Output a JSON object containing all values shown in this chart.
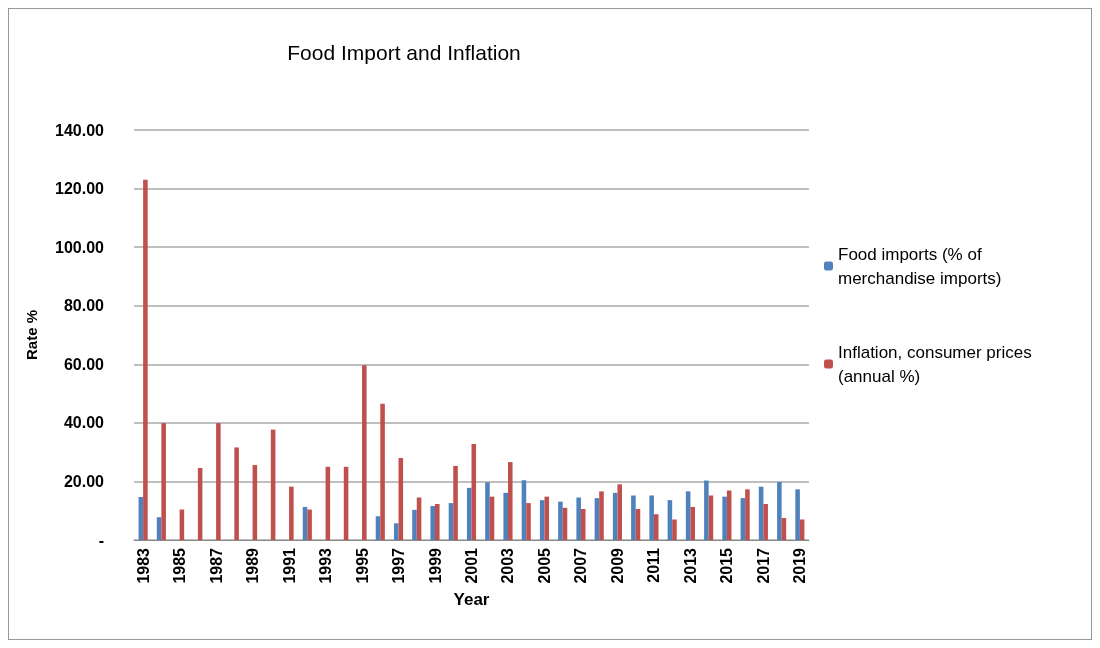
{
  "chart_data": {
    "type": "bar",
    "title": "Food Import and Inflation",
    "xlabel": "Year",
    "ylabel": "Rate %",
    "categories": [
      "1983",
      null,
      "1985",
      null,
      "1987",
      null,
      "1989",
      null,
      "1991",
      null,
      "1993",
      null,
      "1995",
      null,
      "1997",
      null,
      "1999",
      null,
      "2001",
      null,
      "2003",
      null,
      "2005",
      null,
      "2007",
      null,
      "2009",
      null,
      "2011",
      null,
      "2013",
      null,
      "2015",
      null,
      "2017",
      null,
      "2019"
    ],
    "series": [
      {
        "name": "Food imports (% of merchandise imports)",
        "color": "#4f81bd",
        "values": [
          14.7,
          7.8,
          null,
          null,
          null,
          null,
          null,
          null,
          null,
          11.3,
          null,
          null,
          null,
          8.1,
          5.7,
          10.3,
          11.6,
          12.6,
          17.8,
          19.7,
          16.1,
          20.4,
          13.6,
          13.1,
          14.5,
          14.3,
          16.1,
          15.2,
          15.2,
          13.6,
          16.6,
          20.3,
          14.8,
          14.3,
          18.2,
          19.8,
          17.3
        ]
      },
      {
        "name": "Inflation, consumer prices (annual %)",
        "color": "#c0504d",
        "values": [
          123,
          39.9,
          10.4,
          24.6,
          39.9,
          31.6,
          25.6,
          37.7,
          18.2,
          10.4,
          25,
          25,
          59.7,
          46.5,
          28,
          14.5,
          12.3,
          25.3,
          32.8,
          14.8,
          26.6,
          12.6,
          14.8,
          11,
          10.6,
          16.6,
          19,
          10.6,
          8.8,
          7,
          11.3,
          15.2,
          16.9,
          17.3,
          12.3,
          7.5,
          7
        ]
      }
    ],
    "ylim": [
      0,
      140
    ],
    "yticks": [
      {
        "value": 0,
        "label": "-"
      },
      {
        "value": 20,
        "label": "20.00"
      },
      {
        "value": 40,
        "label": "40.00"
      },
      {
        "value": 60,
        "label": "60.00"
      },
      {
        "value": 80,
        "label": "80.00"
      },
      {
        "value": 100,
        "label": "100.00"
      },
      {
        "value": 120,
        "label": "120.00"
      },
      {
        "value": 140,
        "label": "140.00"
      }
    ],
    "grid": "y",
    "legend": "right"
  }
}
